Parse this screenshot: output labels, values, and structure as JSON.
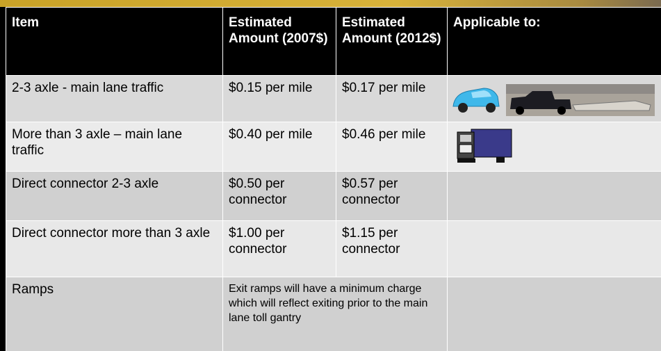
{
  "table": {
    "header": [
      "Item",
      "Estimated Amount (2007$)",
      "Estimated Amount (2012$)",
      "Applicable to:"
    ],
    "rows": [
      [
        "2-3 axle - main lane traffic",
        "$0.15 per mile",
        "$0.17 per mile"
      ],
      [
        "More than 3 axle – main lane traffic",
        "$0.40 per mile",
        "$0.46 per mile"
      ],
      [
        "Direct connector 2-3 axle",
        "$0.50 per connector",
        "$0.57 per connector"
      ],
      [
        "Direct connector more than 3 axle",
        "$1.00 per connector",
        "$1.15 per connector"
      ],
      [
        "Ramps",
        "Exit ramps will have a minimum charge which will reflect exiting prior to the main lane toll gantry"
      ]
    ]
  }
}
